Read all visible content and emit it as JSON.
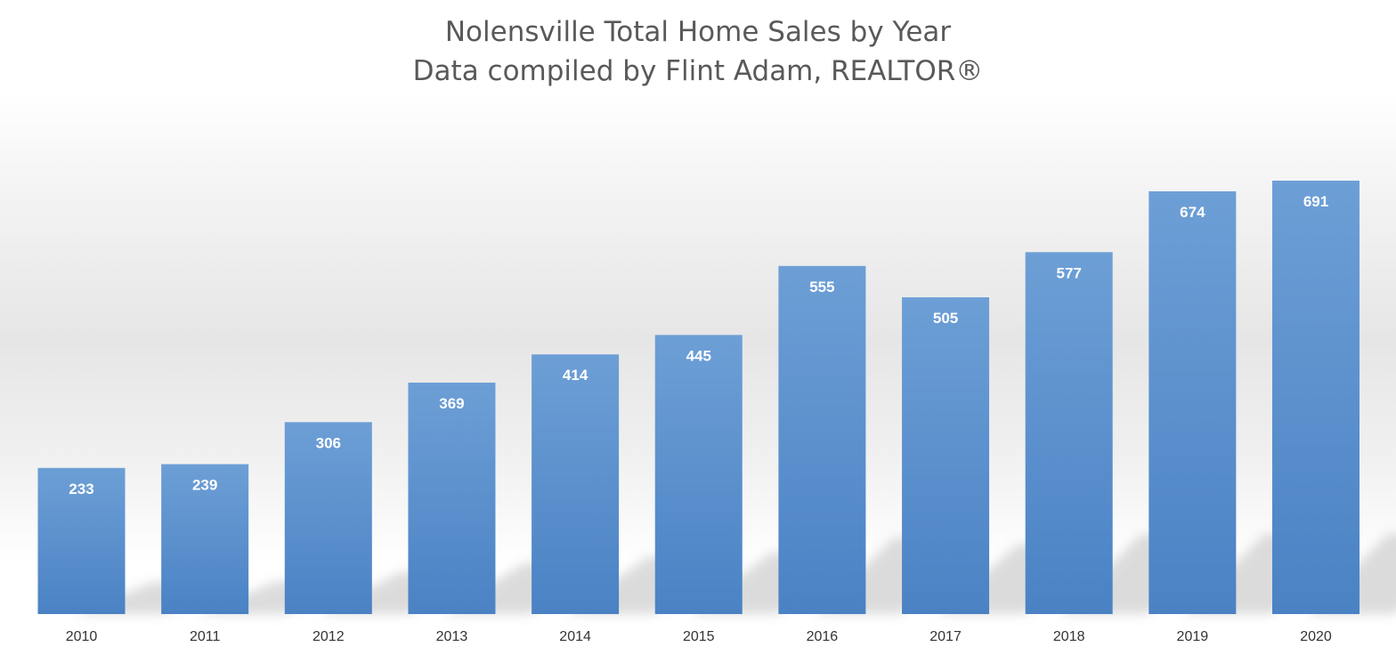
{
  "chart_data": {
    "type": "bar",
    "title": "Nolensville Total Home Sales by Year",
    "subtitle": "Data compiled by Flint Adam, REALTOR®",
    "categories": [
      "2010",
      "2011",
      "2012",
      "2013",
      "2014",
      "2015",
      "2016",
      "2017",
      "2018",
      "2019",
      "2020"
    ],
    "values": [
      233,
      239,
      306,
      369,
      414,
      445,
      555,
      505,
      577,
      674,
      691
    ],
    "ylim": [
      0,
      691
    ],
    "grid": false,
    "legend": "none",
    "data_labels": true
  },
  "colors": {
    "bar_top": "#6d9fd6",
    "bar_bottom": "#4a82c4",
    "data_label": "#ffffff",
    "tick_label": "#333333",
    "title": "#595959",
    "shadow": "#bfbfbf"
  }
}
